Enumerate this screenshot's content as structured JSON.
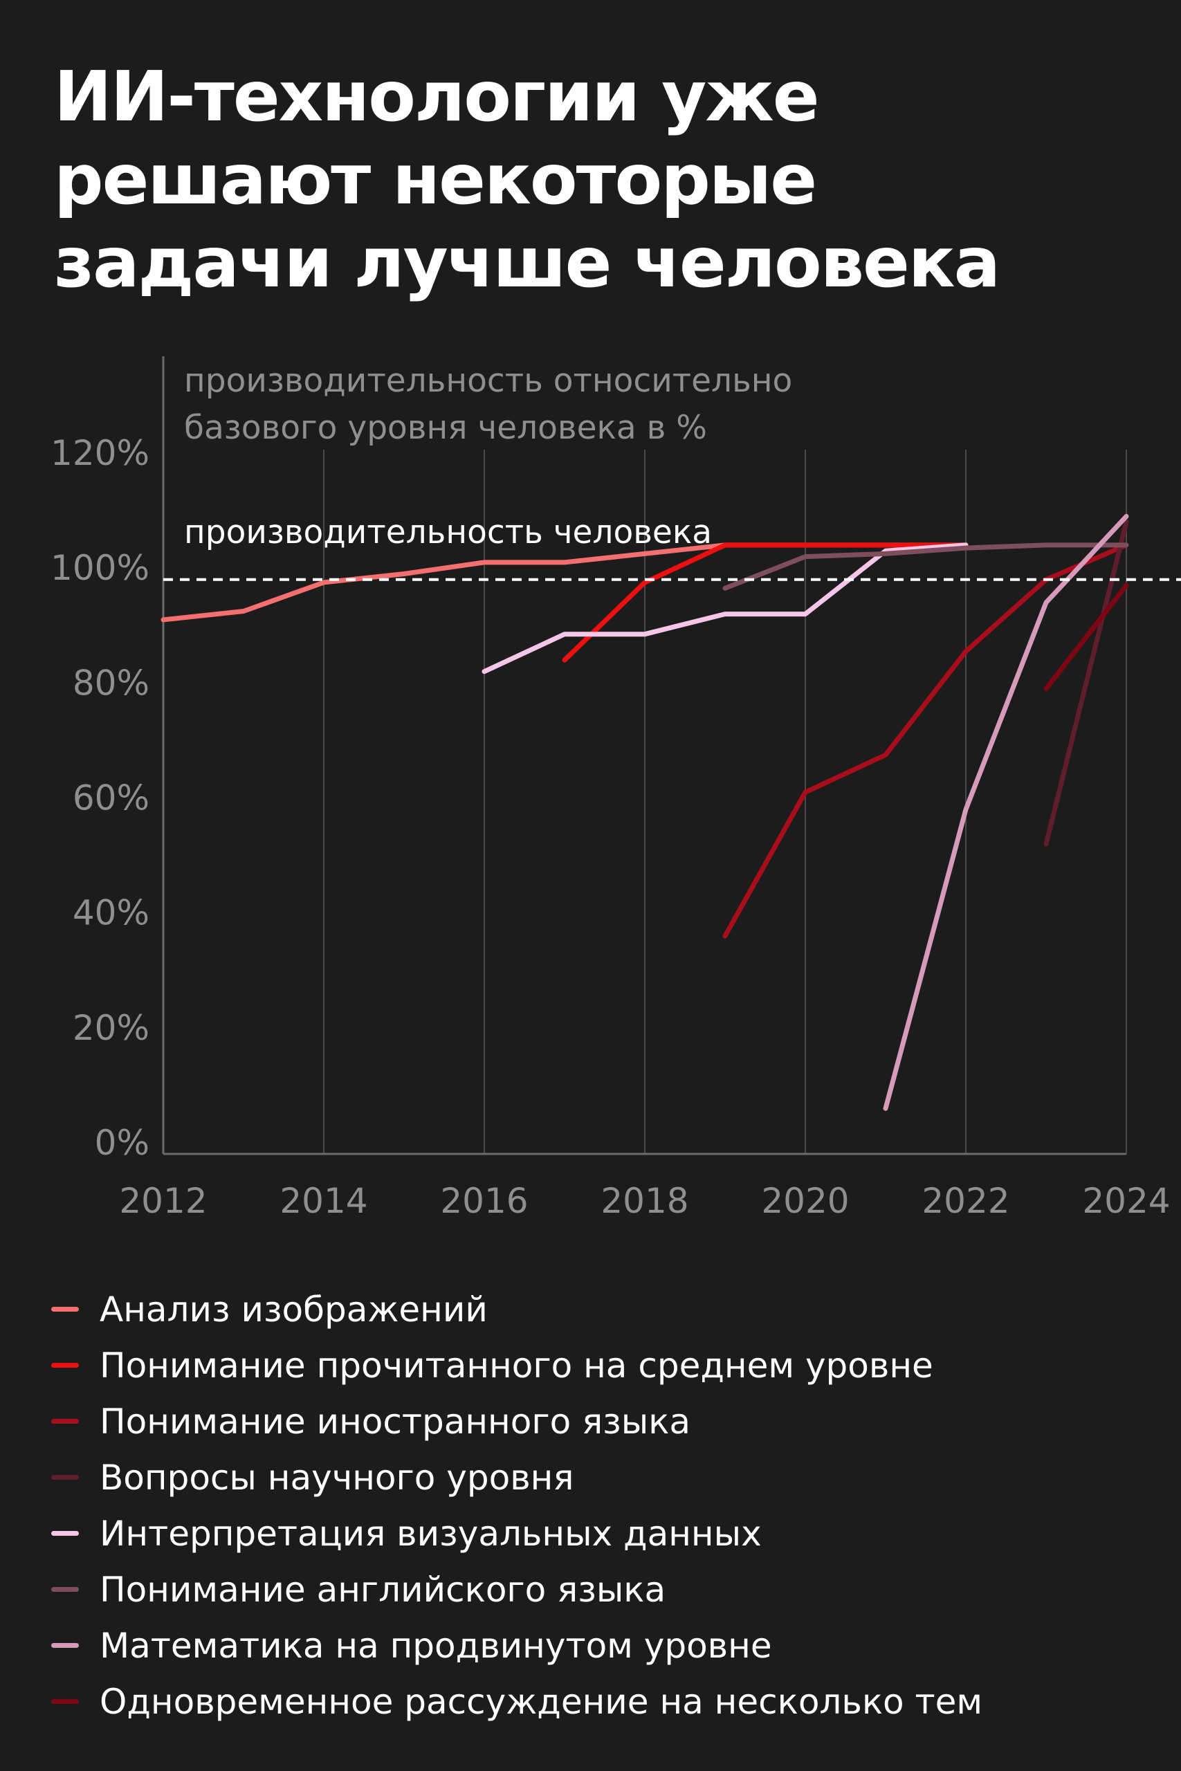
{
  "title_lines": [
    "ИИ-технологии уже",
    "решают некоторые",
    "задачи лучше человека"
  ],
  "chart_data": {
    "type": "line",
    "ylabel_lines": [
      "производительность относительно",
      "базового уровня человека в %"
    ],
    "reference_line": {
      "label": "производительность человека",
      "value": 98,
      "style": "dashed",
      "color": "#ffffff"
    },
    "xlim": [
      2012,
      2024
    ],
    "ylim": [
      0,
      120
    ],
    "x_ticks": [
      "2012",
      "2014",
      "2016",
      "2018",
      "2020",
      "2022",
      "2024"
    ],
    "x_tick_values": [
      2012,
      2014,
      2016,
      2018,
      2020,
      2022,
      2024
    ],
    "y_ticks": [
      "0%",
      "20%",
      "40%",
      "60%",
      "80%",
      "100%",
      "120%"
    ],
    "y_tick_values": [
      0,
      20,
      40,
      60,
      80,
      100,
      120
    ],
    "grid": "vertical",
    "legend_position": "bottom",
    "series": [
      {
        "name": "Анализ изображений",
        "color": "#f46f6f",
        "points": [
          [
            2012,
            91
          ],
          [
            2013,
            92.5
          ],
          [
            2014,
            97.5
          ],
          [
            2015,
            99
          ],
          [
            2016,
            101
          ],
          [
            2017,
            101
          ],
          [
            2018,
            102.5
          ],
          [
            2019,
            104
          ],
          [
            2020,
            104
          ],
          [
            2021,
            104
          ],
          [
            2022,
            104
          ]
        ]
      },
      {
        "name": "Понимание прочитанного на среднем уровне",
        "color": "#ee1010",
        "points": [
          [
            2017,
            84
          ],
          [
            2018,
            97.5
          ],
          [
            2019,
            104
          ],
          [
            2020,
            104
          ],
          [
            2021,
            104
          ],
          [
            2022,
            104
          ]
        ]
      },
      {
        "name": "Понимание иностранного языка",
        "color": "#a80d1c",
        "points": [
          [
            2019,
            36
          ],
          [
            2020,
            61
          ],
          [
            2021,
            67.5
          ],
          [
            2022,
            85.5
          ],
          [
            2023,
            98
          ],
          [
            2024,
            104
          ]
        ]
      },
      {
        "name": "Вопросы научного уровня",
        "color": "#5e1e2e",
        "points": [
          [
            2023,
            52
          ],
          [
            2024,
            108
          ]
        ]
      },
      {
        "name": "Интерпретация визуальных данных",
        "color": "#f5c6e8",
        "points": [
          [
            2016,
            82
          ],
          [
            2017,
            88.5
          ],
          [
            2018,
            88.5
          ],
          [
            2019,
            92
          ],
          [
            2020,
            92
          ],
          [
            2021,
            103
          ],
          [
            2022,
            104
          ]
        ]
      },
      {
        "name": "Понимание английского языка",
        "color": "#7e4e5c",
        "points": [
          [
            2019,
            96.5
          ],
          [
            2020,
            102
          ],
          [
            2021,
            102.5
          ],
          [
            2022,
            103.5
          ],
          [
            2023,
            104
          ],
          [
            2024,
            104
          ]
        ]
      },
      {
        "name": "Математика на продвинутом уровне",
        "color": "#d69bbb",
        "points": [
          [
            2021,
            6
          ],
          [
            2022,
            58
          ],
          [
            2023,
            94
          ],
          [
            2024,
            109
          ]
        ]
      },
      {
        "name": "Одновременное рассуждение на несколько тем",
        "color": "#7d0612",
        "points": [
          [
            2023,
            79
          ],
          [
            2024,
            97
          ]
        ]
      }
    ]
  }
}
